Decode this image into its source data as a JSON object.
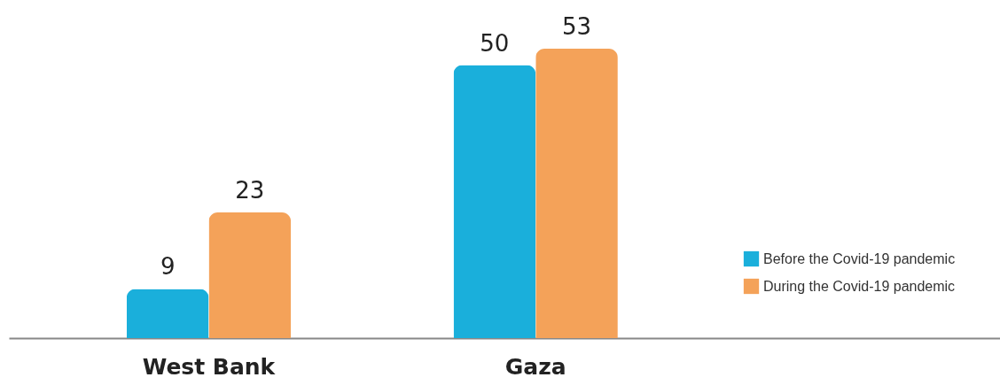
{
  "chart_data": {
    "type": "bar",
    "categories": [
      "West Bank",
      "Gaza"
    ],
    "series": [
      {
        "name": "Before the Covid-19 pandemic",
        "color": "#1aafdb",
        "values": [
          9,
          50
        ]
      },
      {
        "name": "During the Covid-19 pandemic",
        "color": "#f4a259",
        "values": [
          23,
          53
        ]
      }
    ],
    "data_labels": true,
    "legend": "right"
  }
}
